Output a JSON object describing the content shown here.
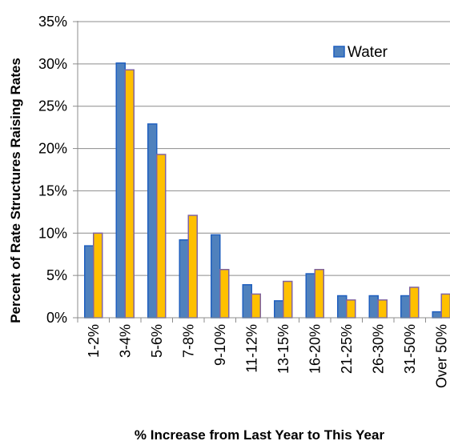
{
  "chart_data": {
    "type": "bar",
    "title": "",
    "xlabel": "% Increase from Last Year to This Year",
    "ylabel": "Percent of Rate Structures Raising Rates",
    "ylim": [
      0,
      35
    ],
    "yticks": [
      0,
      5,
      10,
      15,
      20,
      25,
      30,
      35
    ],
    "ytick_labels": [
      "0%",
      "5%",
      "10%",
      "15%",
      "20%",
      "25%",
      "30%",
      "35%"
    ],
    "grid": "horizontal",
    "legend_position": "top-right",
    "categories": [
      "1-2%",
      "3-4%",
      "5-6%",
      "7-8%",
      "9-10%",
      "11-12%",
      "13-15%",
      "16-20%",
      "21-25%",
      "26-30%",
      "31-50%",
      "Over 50%"
    ],
    "series": [
      {
        "name": "Water",
        "color": "#4f81bd",
        "edge_color": "#1f5fbf",
        "values": [
          8.5,
          30.1,
          22.9,
          9.2,
          9.8,
          3.9,
          2.0,
          5.2,
          2.6,
          2.6,
          2.6,
          0.7
        ]
      },
      {
        "name": "",
        "color": "#ffc000",
        "edge_color": "#8064a2",
        "values": [
          10.0,
          29.3,
          19.3,
          12.1,
          5.7,
          2.8,
          4.3,
          5.7,
          2.1,
          2.1,
          3.6,
          2.8
        ]
      }
    ]
  }
}
